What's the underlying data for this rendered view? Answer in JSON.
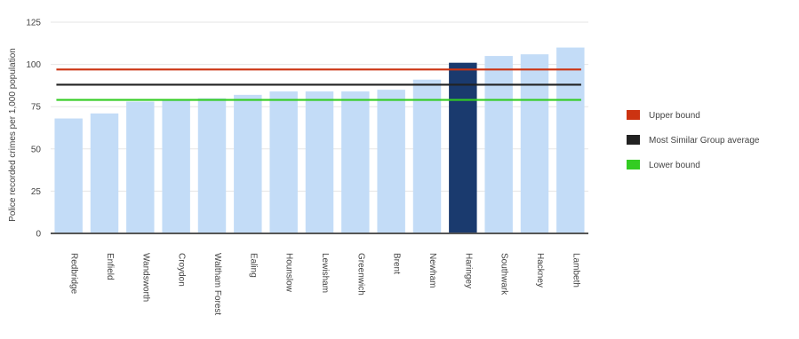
{
  "chart_data": {
    "type": "bar",
    "title": "",
    "xlabel": "",
    "ylabel": "Police recorded crimes per 1,000 population",
    "ylim": [
      0,
      125
    ],
    "yticks": [
      0,
      25,
      50,
      75,
      100,
      125
    ],
    "grid": true,
    "legend_position": "right",
    "categories": [
      "Redbridge",
      "Enfield",
      "Wandsworth",
      "Croydon",
      "Waltham Forest",
      "Ealing",
      "Hounslow",
      "Lewisham",
      "Greenwich",
      "Brent",
      "Newham",
      "Haringey",
      "Southwark",
      "Hackney",
      "Lambeth"
    ],
    "values": [
      68,
      71,
      78,
      79,
      80,
      82,
      84,
      84,
      84,
      85,
      91,
      101,
      105,
      106,
      110
    ],
    "highlight_category": "Haringey",
    "bar_color": "#c3dcf7",
    "highlight_color": "#1a3a6e",
    "reference_lines": [
      {
        "name": "Upper bound",
        "value": 97,
        "color": "#cc3311"
      },
      {
        "name": "Most Similar Group average",
        "value": 88,
        "color": "#222222"
      },
      {
        "name": "Lower bound",
        "value": 79,
        "color": "#33cc22"
      }
    ]
  }
}
